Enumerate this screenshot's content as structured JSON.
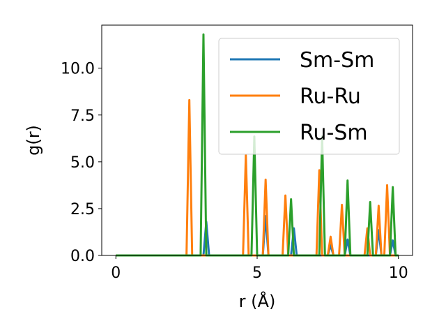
{
  "chart_data": {
    "type": "line",
    "title": "",
    "xlabel": "r (Å)",
    "ylabel": "g(r)",
    "xlim": [
      -0.5,
      10.5
    ],
    "ylim": [
      0,
      12.3
    ],
    "xticks": [
      0,
      5,
      10
    ],
    "xtick_labels": [
      "0",
      "5",
      "10"
    ],
    "yticks": [
      0,
      2.5,
      5,
      7.5,
      10
    ],
    "ytick_labels": [
      "0.0",
      "2.5",
      "5.0",
      "7.5",
      "10.0"
    ],
    "grid": false,
    "legend_position": "upper-right",
    "series": [
      {
        "name": "Sm-Sm",
        "color": "#1f77b4",
        "x": [
          0,
          3.1,
          3.2,
          3.3,
          5.2,
          5.3,
          5.4,
          6.2,
          6.3,
          6.4,
          7.5,
          7.6,
          7.7,
          8.1,
          8.2,
          8.3,
          9.2,
          9.3,
          9.4,
          9.7,
          9.8,
          9.9,
          10.0
        ],
        "y": [
          0,
          0,
          1.8,
          0,
          0,
          2.1,
          0,
          0,
          1.45,
          0,
          0,
          0.55,
          0,
          0,
          0.85,
          0,
          0,
          1.35,
          0,
          0,
          0.8,
          0,
          0
        ]
      },
      {
        "name": "Ru-Ru",
        "color": "#ff7f0e",
        "x": [
          0,
          2.5,
          2.6,
          2.7,
          4.5,
          4.6,
          4.7,
          5.2,
          5.3,
          5.4,
          5.9,
          6.0,
          6.1,
          7.1,
          7.2,
          7.3,
          7.5,
          7.6,
          7.7,
          7.9,
          8.0,
          8.1,
          8.8,
          8.9,
          9.0,
          9.2,
          9.3,
          9.4,
          9.5,
          9.6,
          9.7,
          10.0
        ],
        "y": [
          0,
          0,
          8.3,
          0,
          0,
          5.35,
          0,
          0,
          4.05,
          0,
          0,
          3.2,
          0,
          0,
          4.55,
          0,
          0,
          1.0,
          0,
          0,
          2.7,
          0,
          0,
          1.45,
          0,
          0,
          2.65,
          0,
          0,
          3.75,
          0,
          0
        ]
      },
      {
        "name": "Ru-Sm",
        "color": "#2ca02c",
        "x": [
          0,
          3.0,
          3.1,
          3.2,
          4.8,
          4.9,
          5.0,
          6.1,
          6.2,
          6.3,
          7.2,
          7.3,
          7.4,
          8.1,
          8.2,
          8.3,
          8.9,
          9.0,
          9.1,
          9.7,
          9.8,
          9.9,
          10.0
        ],
        "y": [
          0,
          0,
          11.8,
          0,
          0,
          6.35,
          0,
          0,
          3.0,
          0,
          0,
          6.35,
          0,
          0,
          4.0,
          0,
          0,
          2.85,
          0,
          0,
          3.65,
          0,
          0
        ]
      }
    ]
  }
}
